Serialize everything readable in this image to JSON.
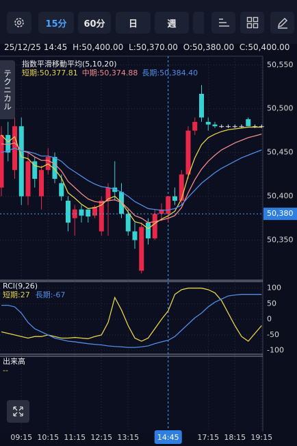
{
  "toolbar": {
    "intervals": [
      "15分",
      "60分",
      "日",
      "週"
    ]
  },
  "info": {
    "datetime": "25/12/25 14:45",
    "high": "H:50,400.00",
    "low": "L:50,370.00",
    "open": "O:50,380.00",
    "close": "C:50,400.00"
  },
  "side_tab": "テクニカル",
  "chart_data": [
    {
      "type": "candlestick",
      "title": "指数平滑移動平均(5,10,20)",
      "categories": [
        null,
        null,
        null,
        "09:15",
        null,
        null,
        null,
        "10:15",
        null,
        null,
        null,
        "11:15",
        null,
        null,
        null,
        "12:15",
        null,
        null,
        null,
        "13:15",
        null,
        null,
        null,
        null,
        null,
        "14:45",
        null,
        null,
        null,
        null,
        null,
        "17:15",
        null,
        null,
        null,
        "18:15",
        null,
        null,
        null,
        "19:15"
      ],
      "highlight_category": 25,
      "open": [
        50410,
        50470,
        50430,
        50480,
        50400,
        50440,
        50400,
        50430,
        50445,
        50415,
        50395,
        50375,
        50385,
        50385,
        50378,
        50360,
        50395,
        50410,
        50405,
        50380,
        50360,
        50315,
        50370,
        50352,
        50380,
        50380,
        50400,
        50395,
        50425,
        50475,
        50517,
        50485,
        50482,
        50480,
        50480,
        50480,
        50480,
        50488,
        50480,
        50480
      ],
      "high": [
        50480,
        50485,
        50490,
        50490,
        50450,
        50445,
        50435,
        50455,
        50450,
        50425,
        50400,
        50390,
        50390,
        50385,
        50390,
        50400,
        50415,
        50440,
        50415,
        50385,
        50370,
        50370,
        50375,
        50385,
        50392,
        50400,
        50410,
        50430,
        50480,
        50490,
        50527,
        50490,
        50485,
        50482,
        50482,
        50482,
        50482,
        50490,
        50482,
        50482
      ],
      "low": [
        50400,
        50440,
        50420,
        50390,
        50390,
        50410,
        50385,
        50425,
        50415,
        50395,
        50360,
        50355,
        50370,
        50370,
        50375,
        50355,
        50355,
        50395,
        50375,
        50355,
        50340,
        50312,
        50345,
        50350,
        50372,
        50370,
        50390,
        50390,
        50420,
        50470,
        50485,
        50475,
        50478,
        50478,
        50478,
        50478,
        50478,
        50480,
        50478,
        50478
      ],
      "close": [
        50470,
        50450,
        50480,
        50400,
        50440,
        50420,
        50430,
        50445,
        50420,
        50400,
        50370,
        50385,
        50378,
        50377,
        50388,
        50395,
        50410,
        50405,
        50380,
        50360,
        50350,
        50365,
        50352,
        50380,
        50385,
        50400,
        50395,
        50425,
        50475,
        50485,
        50490,
        50482,
        50480,
        50480,
        50480,
        50480,
        50480,
        50480,
        50480,
        50480
      ],
      "up_color": "#e8284a",
      "down_color": "#37d3d3",
      "flat_color": "#e8e8e8",
      "series": [
        {
          "name": "短期:50,377.81",
          "color": "#e6d34a",
          "values": [
            50470,
            50462,
            50468,
            50445,
            50443,
            50435,
            50433,
            50437,
            50431,
            50421,
            50404,
            50398,
            50391,
            50386,
            50387,
            50390,
            50397,
            50400,
            50393,
            50382,
            50371,
            50369,
            50363,
            50369,
            50374,
            50377.81,
            50383,
            50397,
            50423,
            50444,
            50459,
            50467,
            50471,
            50474,
            50476,
            50477,
            50478,
            50479,
            50479,
            50479
          ]
        },
        {
          "name": "中期:50,374.88",
          "color": "#f28b8b",
          "values": [
            50460,
            50459,
            50461,
            50452,
            50450,
            50445,
            50441,
            50441,
            50437,
            50429,
            50417,
            50410,
            50403,
            50397,
            50394,
            50393,
            50395,
            50396,
            50393,
            50386,
            50378,
            50375,
            50370,
            50371,
            50373,
            50374.88,
            50378,
            50387,
            50404,
            50419,
            50431,
            50440,
            50447,
            50453,
            50457,
            50461,
            50464,
            50467,
            50469,
            50471
          ]
        },
        {
          "name": "長期:50,384.40",
          "color": "#4f8fe6",
          "values": [
            50450,
            50452,
            50455,
            50452,
            50451,
            50449,
            50446,
            50446,
            50444,
            50440,
            50433,
            50428,
            50423,
            50418,
            50414,
            50411,
            50410,
            50408,
            50405,
            50400,
            50394,
            50390,
            50386,
            50385,
            50384,
            50384.4,
            50386,
            50390,
            50399,
            50407,
            50415,
            50421,
            50427,
            50432,
            50436,
            50440,
            50444,
            50447,
            50450,
            50453
          ]
        }
      ],
      "ylim": [
        50305,
        50560
      ],
      "yticks": [
        {
          "value": 50550,
          "label": "50,550"
        },
        {
          "value": 50500,
          "label": "50,500"
        },
        {
          "value": 50450,
          "label": "50,450"
        },
        {
          "value": 50400,
          "label": "50,400"
        },
        {
          "value": 50350,
          "label": "50,350"
        }
      ],
      "crosshair_price": {
        "value": 50380,
        "label": "50,380"
      },
      "grid": true
    },
    {
      "type": "line",
      "title": "RCI(9,26)",
      "series": [
        {
          "name": "短期:27",
          "color": "#e6d34a",
          "values": [
            -40,
            -45,
            -50,
            -55,
            -60,
            -55,
            -55,
            -50,
            -55,
            -60,
            -60,
            -58,
            -60,
            -62,
            -55,
            -50,
            -10,
            70,
            30,
            -20,
            -60,
            -70,
            -60,
            -30,
            0,
            27,
            80,
            95,
            100,
            100,
            100,
            95,
            85,
            60,
            20,
            -20,
            -55,
            -70,
            -45,
            -20
          ]
        },
        {
          "name": "長期:-67",
          "color": "#4f8fe6",
          "values": [
            45,
            45,
            40,
            20,
            -10,
            -30,
            -40,
            -50,
            -60,
            -65,
            -70,
            -72,
            -75,
            -78,
            -80,
            -82,
            -85,
            -87,
            -88,
            -90,
            -90,
            -88,
            -85,
            -78,
            -72,
            -67,
            -55,
            -35,
            -15,
            5,
            20,
            40,
            55,
            65,
            75,
            78,
            80,
            80,
            80,
            80
          ]
        }
      ],
      "ylim": [
        -116,
        121
      ],
      "yticks": [
        100,
        50,
        0,
        -50,
        -100
      ],
      "grid": true
    },
    {
      "type": "bar",
      "title": "出来高",
      "series": [
        {
          "name": "--",
          "color": "#e6d34a",
          "values": []
        }
      ]
    }
  ]
}
